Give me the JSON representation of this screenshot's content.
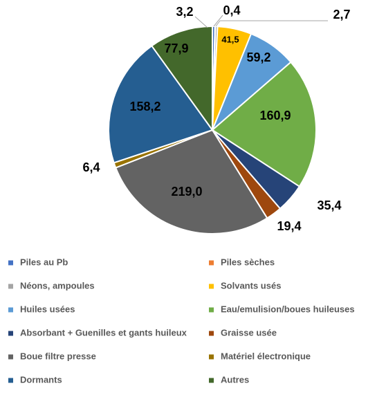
{
  "chart_data": {
    "type": "pie",
    "categories": [
      "Piles au Pb",
      "Piles sèches",
      "Néons, ampoules",
      "Solvants usés",
      "Huiles usées",
      "Eau/emulision/boues huileuses",
      "Absorbant + Guenilles et gants huileux",
      "Graisse usée",
      "Boue filtre presse",
      "Matériel électronique",
      "Dormants",
      "Autres"
    ],
    "values": [
      3.2,
      0.4,
      2.7,
      41.5,
      59.2,
      160.9,
      35.4,
      19.4,
      219.0,
      6.4,
      158.2,
      77.9
    ],
    "value_labels": [
      "3,2",
      "0,4",
      "2,7",
      "41,5",
      "59,2",
      "160,9",
      "35,4",
      "19,4",
      "219,0",
      "6,4",
      "158,2",
      "77,9"
    ],
    "colors": [
      "#4472c4",
      "#ed7d31",
      "#a5a5a5",
      "#ffc000",
      "#5b9bd5",
      "#70ad47",
      "#264478",
      "#9e480e",
      "#636363",
      "#997300",
      "#255e91",
      "#43682b"
    ],
    "legend": "bottom"
  }
}
